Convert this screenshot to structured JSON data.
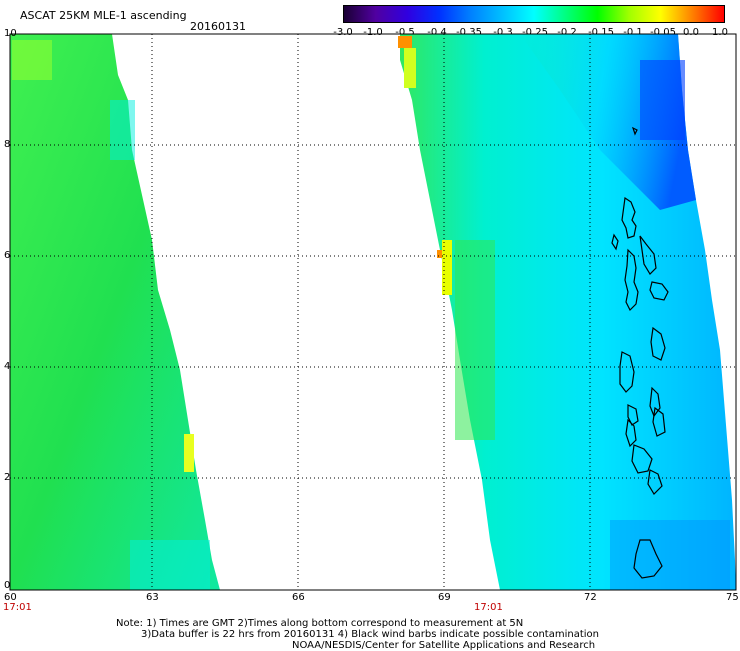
{
  "header": {
    "title": "ASCAT 25KM MLE-1 ascending",
    "date": "20160131"
  },
  "colorbar": {
    "ticks": [
      "-3.0",
      "-1.0",
      "-0.5",
      "-0.4",
      "-0.35",
      "-0.3",
      "-0.25",
      "-0.2",
      "-0.15",
      "-0.1",
      "-0.05",
      "0.0",
      "1.0"
    ],
    "colors": [
      "#1a0033",
      "#5000a0",
      "#3000e0",
      "#0030ff",
      "#0080ff",
      "#00c0ff",
      "#00ffff",
      "#00ff80",
      "#00ff00",
      "#a0ff00",
      "#ffff00",
      "#ff8000",
      "#ff0000"
    ]
  },
  "map": {
    "x_ticks": [
      "60",
      "63",
      "66",
      "69",
      "72",
      "75"
    ],
    "y_ticks": [
      "10",
      "8",
      "6",
      "4",
      "2",
      "0"
    ],
    "times": [
      "17:01",
      "17:01"
    ],
    "colors": {
      "green": "#22e040",
      "lightgreen": "#40ff60",
      "cyan": "#00ffe0",
      "aqua": "#00e8ff",
      "sky": "#00b0ff",
      "blue": "#0070ff",
      "yellow": "#f0ff00",
      "orange": "#ff9000"
    }
  },
  "notes": {
    "line1": "Note: 1) Times are GMT 2)Times along bottom correspond to measurement at 5N",
    "line2": "3)Data buffer is 22 hrs from 20160131 4) Black wind barbs indicate possible contamination",
    "line3": "NOAA/NESDIS/Center for Satellite Applications and Research"
  }
}
